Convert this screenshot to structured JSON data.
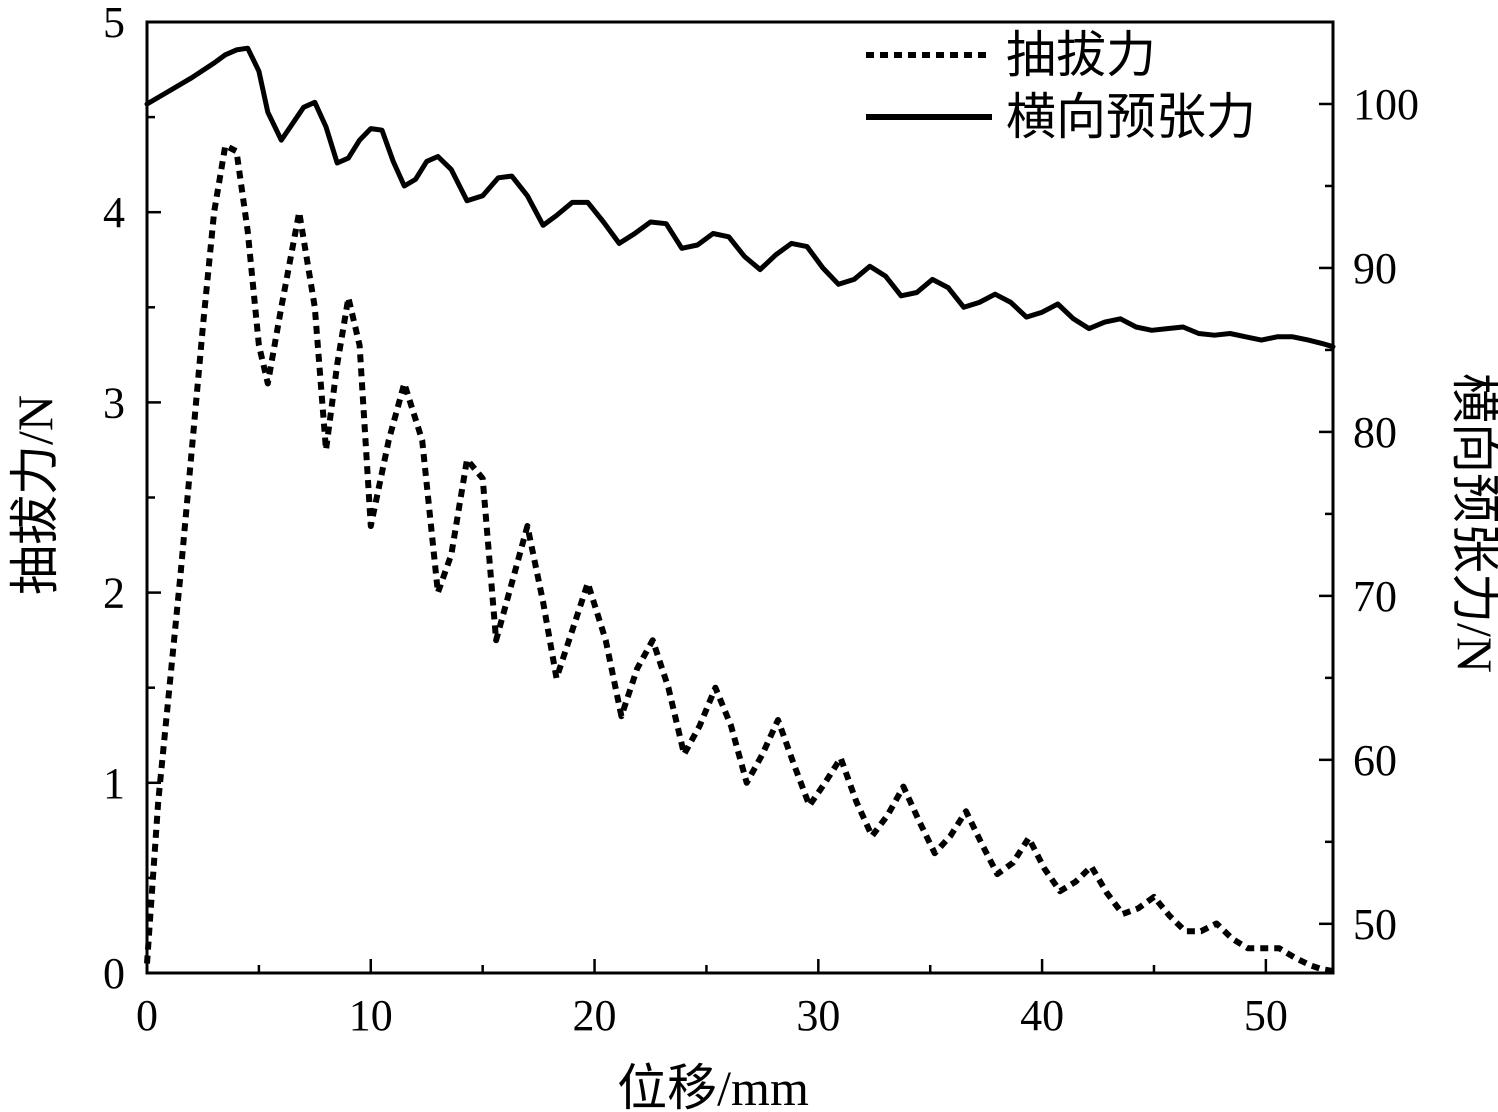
{
  "chart_data": {
    "type": "line",
    "title": "",
    "xlabel": "位移/mm",
    "ylabel_left": "抽拔力/N",
    "ylabel_right": "横向预张力/N",
    "xlim": [
      0,
      53
    ],
    "ylim_left": [
      0,
      5
    ],
    "ylim_right": [
      47,
      105
    ],
    "x_ticks": [
      0,
      10,
      20,
      30,
      40,
      50
    ],
    "y_left_ticks": [
      0,
      1,
      2,
      3,
      4,
      5
    ],
    "y_right_ticks": [
      50,
      60,
      70,
      80,
      90,
      100
    ],
    "grid": false,
    "legend_position": "top-right",
    "series": [
      {
        "name": "抽拔力",
        "axis": "left",
        "style": "dotted",
        "color": "#000000",
        "x": [
          0,
          0.5,
          1,
          1.5,
          2,
          2.5,
          3,
          3.5,
          4,
          4.5,
          5,
          5.4,
          6,
          6.8,
          7.5,
          8,
          8.5,
          9,
          9.5,
          10,
          10.8,
          11.5,
          12.3,
          13,
          13.6,
          14.3,
          15,
          15.6,
          16.3,
          17,
          17.7,
          18.3,
          19,
          19.7,
          20.5,
          21.2,
          21.9,
          22.6,
          23.3,
          24,
          24.7,
          25.4,
          26.1,
          26.8,
          27.5,
          28.2,
          28.9,
          29.6,
          30.3,
          31,
          31.7,
          32.4,
          33.1,
          33.8,
          34.5,
          35.2,
          35.9,
          36.6,
          37.3,
          38,
          38.7,
          39.4,
          40.1,
          40.8,
          41.5,
          42.2,
          42.9,
          43.6,
          44.3,
          45,
          45.7,
          46.4,
          47.1,
          47.8,
          48.5,
          49.2,
          49.9,
          50.6,
          51.3,
          52,
          52.5,
          53
        ],
        "y": [
          0.05,
          0.9,
          1.5,
          2.1,
          2.75,
          3.4,
          4.0,
          4.35,
          4.32,
          3.9,
          3.3,
          3.1,
          3.5,
          4.0,
          3.5,
          2.75,
          3.2,
          3.55,
          3.3,
          2.35,
          2.8,
          3.1,
          2.8,
          2.0,
          2.2,
          2.7,
          2.6,
          1.75,
          2.05,
          2.35,
          1.95,
          1.55,
          1.8,
          2.05,
          1.75,
          1.35,
          1.6,
          1.75,
          1.5,
          1.15,
          1.3,
          1.5,
          1.3,
          1.0,
          1.15,
          1.33,
          1.1,
          0.88,
          1.0,
          1.13,
          0.9,
          0.72,
          0.83,
          0.98,
          0.8,
          0.63,
          0.72,
          0.85,
          0.68,
          0.52,
          0.58,
          0.71,
          0.55,
          0.43,
          0.48,
          0.56,
          0.42,
          0.31,
          0.34,
          0.4,
          0.3,
          0.22,
          0.22,
          0.26,
          0.18,
          0.13,
          0.13,
          0.13,
          0.08,
          0.04,
          0.02,
          0.01
        ]
      },
      {
        "name": "横向预张力",
        "axis": "right",
        "style": "solid",
        "color": "#000000",
        "x": [
          0,
          1,
          2,
          3,
          3.5,
          4,
          4.5,
          5,
          5.4,
          6,
          6.5,
          7,
          7.5,
          8,
          8.5,
          9,
          9.5,
          10,
          10.5,
          11,
          11.5,
          12,
          12.5,
          13,
          13.6,
          14.3,
          15,
          15.7,
          16.3,
          17,
          17.7,
          18.3,
          19,
          19.7,
          20.4,
          21.1,
          21.8,
          22.5,
          23.2,
          23.9,
          24.6,
          25.3,
          26,
          26.7,
          27.4,
          28.1,
          28.8,
          29.5,
          30.2,
          30.9,
          31.6,
          32.3,
          33,
          33.7,
          34.4,
          35.1,
          35.8,
          36.5,
          37.2,
          37.9,
          38.6,
          39.3,
          40,
          40.7,
          41.4,
          42.1,
          42.8,
          43.5,
          44.2,
          44.9,
          45.6,
          46.3,
          47,
          47.7,
          48.4,
          49.1,
          49.8,
          50.5,
          51.2,
          51.9,
          52.5,
          53
        ],
        "y": [
          100.0,
          100.8,
          101.6,
          102.5,
          103.0,
          103.3,
          103.4,
          102.0,
          99.5,
          97.8,
          98.8,
          99.8,
          100.1,
          98.6,
          96.4,
          96.7,
          97.8,
          98.5,
          98.4,
          96.5,
          95.0,
          95.4,
          96.5,
          96.8,
          96.0,
          94.1,
          94.4,
          95.5,
          95.6,
          94.4,
          92.6,
          93.2,
          94.0,
          94.0,
          92.8,
          91.5,
          92.1,
          92.8,
          92.7,
          91.2,
          91.4,
          92.1,
          91.9,
          90.7,
          89.9,
          90.8,
          91.5,
          91.3,
          90.0,
          89.0,
          89.3,
          90.1,
          89.5,
          88.3,
          88.5,
          89.3,
          88.8,
          87.6,
          87.9,
          88.4,
          87.9,
          87.0,
          87.3,
          87.8,
          86.9,
          86.3,
          86.7,
          86.9,
          86.4,
          86.2,
          86.3,
          86.4,
          86.0,
          85.9,
          86.0,
          85.8,
          85.6,
          85.8,
          85.8,
          85.6,
          85.4,
          85.2
        ]
      }
    ]
  }
}
